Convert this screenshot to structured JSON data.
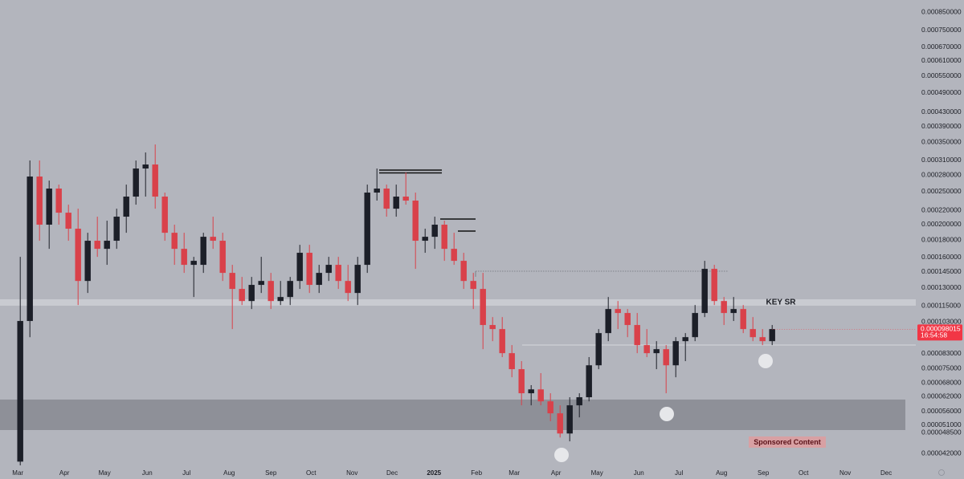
{
  "chart_data": {
    "type": "candlestick",
    "log_scale": true,
    "grid": false,
    "up_color": "#1c1f28",
    "down_color": "#d9414a",
    "x": [
      0,
      1,
      2,
      3,
      4,
      5,
      6,
      7,
      8,
      9,
      10,
      11,
      12,
      13,
      14,
      15,
      16,
      17,
      18,
      19,
      20,
      21,
      22,
      23,
      24,
      25,
      26,
      27,
      28,
      29,
      30,
      31,
      32,
      33,
      34,
      35,
      36,
      37,
      38,
      39,
      40,
      41,
      42,
      43,
      44,
      45,
      46,
      47,
      48,
      49,
      50,
      51,
      52,
      53,
      54,
      55,
      56,
      57,
      58,
      59,
      60,
      61,
      62,
      63,
      64,
      65,
      66,
      67,
      68,
      69,
      70,
      71,
      72,
      73,
      74,
      75,
      76,
      77,
      78
    ],
    "open": [
      3.98e-05,
      0.0001037,
      0.0002773,
      0.0001998,
      0.0002555,
      0.0002168,
      0.0001944,
      0.0001362,
      0.0001791,
      0.0001695,
      0.0001791,
      0.000211,
      0.0002419,
      0.0002929,
      0.000301,
      0.0002419,
      0.0001891,
      0.0001695,
      0.000152,
      0.000152,
      0.000184,
      0.0001791,
      0.0001439,
      0.000129,
      0.0001188,
      0.0001326,
      0.0001362,
      0.0001188,
      0.0001221,
      0.0001362,
      0.000165,
      0.0001326,
      0.0001439,
      0.000152,
      0.0001362,
      0.0001255,
      0.000152,
      0.0002486,
      0.0002555,
      0.0002228,
      0.0002419,
      0.0002354,
      0.0001791,
      0.000184,
      0.0001998,
      0.0001695,
      0.0001562,
      0.0001362,
      0.000129,
      0.0001009,
      9.815e-05,
      8.33e-05,
      7.47e-05,
      6.34e-05,
      6.51e-05,
      6e-05,
      5.53e-05,
      4.82e-05,
      5.84e-05,
      6.17e-05,
      7.67e-05,
      9.55e-05,
      0.0001125,
      0.0001095,
      0.0001009,
      8.8e-05,
      8.33e-05,
      8.56e-05,
      7.67e-05,
      9.04e-05,
      9.29e-05,
      0.0001095,
      0.0001479,
      0.0001188,
      0.0001095,
      0.0001125,
      9.815e-05,
      9.29e-05,
      9.04e-05
    ],
    "high": [
      0.0001605,
      0.0003093,
      0.0003093,
      0.0002698,
      0.0002625,
      0.000229,
      0.0002228,
      0.0001891,
      0.000211,
      0.0002053,
      0.0002228,
      0.0002625,
      0.0003093,
      0.0003267,
      0.000345,
      0.0002486,
      0.0001998,
      0.0001891,
      0.0001605,
      0.0001891,
      0.000211,
      0.0001891,
      0.000152,
      0.00014,
      0.00014,
      0.0001605,
      0.0001439,
      0.0001362,
      0.00014,
      0.0001742,
      0.0001742,
      0.000152,
      0.0001605,
      0.0001605,
      0.000152,
      0.0001605,
      0.0002625,
      0.0002929,
      0.0002625,
      0.0002625,
      0.000285,
      0.0002486,
      0.0001944,
      0.000211,
      0.0002053,
      0.0001891,
      0.000165,
      0.0001439,
      0.0001439,
      0.0001065,
      0.0001065,
      8.8e-05,
      7.89e-05,
      6.7e-05,
      7.27e-05,
      6.34e-05,
      5.84e-05,
      6.17e-05,
      6.34e-05,
      8.11e-05,
      9.815e-05,
      0.0001221,
      0.0001188,
      0.0001125,
      0.0001095,
      9.815e-05,
      9.04e-05,
      8.8e-05,
      9.29e-05,
      9.55e-05,
      0.0001156,
      0.0001562,
      0.000152,
      0.0001221,
      0.0001221,
      0.0001156,
      0.0001065,
      9.815e-05,
      0.0001009
    ],
    "low": [
      3.88e-05,
      9.29e-05,
      0.0001791,
      0.0001695,
      0.0001998,
      0.0001791,
      0.0001156,
      0.0001255,
      0.0001605,
      0.000152,
      0.0001695,
      0.0001891,
      0.000229,
      0.0002419,
      0.0002228,
      0.0001791,
      0.000152,
      0.0001439,
      0.0001221,
      0.0001439,
      0.0001695,
      0.0001362,
      9.815e-05,
      0.0001156,
      0.0001125,
      0.0001255,
      0.0001125,
      0.0001156,
      0.0001156,
      0.000129,
      0.0001255,
      0.0001255,
      0.0001362,
      0.000129,
      0.0001188,
      0.0001156,
      0.0001439,
      0.0002354,
      0.000211,
      0.000211,
      0.000229,
      0.0001479,
      0.000165,
      0.0001695,
      0.0001562,
      0.000152,
      0.000129,
      0.0001125,
      8.56e-05,
      9.04e-05,
      8.11e-05,
      7.07e-05,
      5.84e-05,
      5.84e-05,
      5.84e-05,
      5.24e-05,
      4.69e-05,
      4.57e-05,
      5.38e-05,
      6e-05,
      7.47e-05,
      9.04e-05,
      9.815e-05,
      9.29e-05,
      8.33e-05,
      8.11e-05,
      7.47e-05,
      6.34e-05,
      7.07e-05,
      7.89e-05,
      9.04e-05,
      0.0001065,
      0.0001156,
      0.0001009,
      0.0001037,
      9.55e-05,
      9.04e-05,
      8.8e-05,
      8.8e-05
    ],
    "close": [
      0.0001037,
      0.0002773,
      0.0001998,
      0.0002555,
      0.0002168,
      0.0001944,
      0.0001362,
      0.0001791,
      0.0001695,
      0.0001791,
      0.000211,
      0.0002419,
      0.0002929,
      0.000301,
      0.0002419,
      0.0001891,
      0.0001695,
      0.000152,
      0.0001562,
      0.000184,
      0.0001791,
      0.0001439,
      0.000129,
      0.0001188,
      0.0001326,
      0.0001362,
      0.0001188,
      0.0001221,
      0.0001362,
      0.000165,
      0.0001326,
      0.0001439,
      0.000152,
      0.0001362,
      0.0001255,
      0.000152,
      0.0002486,
      0.0002555,
      0.0002228,
      0.0002419,
      0.0002354,
      0.0001791,
      0.000184,
      0.0001998,
      0.0001695,
      0.0001562,
      0.0001362,
      0.000129,
      0.0001009,
      9.815e-05,
      8.33e-05,
      7.47e-05,
      6.34e-05,
      6.51e-05,
      6e-05,
      5.53e-05,
      4.82e-05,
      5.84e-05,
      6.17e-05,
      7.67e-05,
      9.55e-05,
      0.0001125,
      0.0001095,
      0.0001009,
      8.8e-05,
      8.33e-05,
      8.56e-05,
      7.67e-05,
      9.04e-05,
      9.29e-05,
      0.0001095,
      0.0001479,
      0.0001188,
      0.0001095,
      0.0001125,
      9.815e-05,
      9.29e-05,
      9.04e-05,
      9.815e-05
    ],
    "xlim": [
      -2.1,
      91.9
    ],
    "xticks": [
      {
        "value": -0.25,
        "label": "Mar"
      },
      {
        "value": 4.58,
        "label": "Apr"
      },
      {
        "value": 8.75,
        "label": "May"
      },
      {
        "value": 13.17,
        "label": "Jun"
      },
      {
        "value": 17.25,
        "label": "Jul"
      },
      {
        "value": 21.67,
        "label": "Aug"
      },
      {
        "value": 26,
        "label": "Sep"
      },
      {
        "value": 30.17,
        "label": "Oct"
      },
      {
        "value": 34.42,
        "label": "Nov"
      },
      {
        "value": 38.58,
        "label": "Dec"
      },
      {
        "value": 42.92,
        "label": "2025"
      },
      {
        "value": 47.33,
        "label": "Feb"
      },
      {
        "value": 51.25,
        "label": "Mar"
      },
      {
        "value": 55.58,
        "label": "Apr"
      },
      {
        "value": 59.83,
        "label": "May"
      },
      {
        "value": 64.17,
        "label": "Jun"
      },
      {
        "value": 68.33,
        "label": "Jul"
      },
      {
        "value": 72.75,
        "label": "Aug"
      },
      {
        "value": 77.08,
        "label": "Sep"
      },
      {
        "value": 81.25,
        "label": "Oct"
      },
      {
        "value": 85.58,
        "label": "Nov"
      },
      {
        "value": 89.83,
        "label": "Dec"
      }
    ],
    "ylim": [
      3.88e-05,
      0.0009226
    ],
    "yticks": [
      {
        "value": 0.00085,
        "label": "0.000850000"
      },
      {
        "value": 0.00075,
        "label": "0.000750000"
      },
      {
        "value": 0.00067,
        "label": "0.000670000"
      },
      {
        "value": 0.00061,
        "label": "0.000610000"
      },
      {
        "value": 0.00055,
        "label": "0.000550000"
      },
      {
        "value": 0.00049,
        "label": "0.000490000"
      },
      {
        "value": 0.00043,
        "label": "0.000430000"
      },
      {
        "value": 0.00039,
        "label": "0.000390000"
      },
      {
        "value": 0.00035,
        "label": "0.000350000"
      },
      {
        "value": 0.00031,
        "label": "0.000310000"
      },
      {
        "value": 0.00028,
        "label": "0.000280000"
      },
      {
        "value": 0.00025,
        "label": "0.000250000"
      },
      {
        "value": 0.00022,
        "label": "0.000220000"
      },
      {
        "value": 0.0002,
        "label": "0.000200000"
      },
      {
        "value": 0.00018,
        "label": "0.000180000"
      },
      {
        "value": 0.00016,
        "label": "0.000160000"
      },
      {
        "value": 0.000145,
        "label": "0.000145000"
      },
      {
        "value": 0.00013,
        "label": "0.000130000"
      },
      {
        "value": 0.000115,
        "label": "0.000115000"
      },
      {
        "value": 0.000103,
        "label": "0.000103000"
      },
      {
        "value": 8.3e-05,
        "label": "0.000083000"
      },
      {
        "value": 7.5e-05,
        "label": "0.000075000"
      },
      {
        "value": 6.8e-05,
        "label": "0.000068000"
      },
      {
        "value": 6.2e-05,
        "label": "0.000062000"
      },
      {
        "value": 5.6e-05,
        "label": "0.000056000"
      },
      {
        "value": 5.1e-05,
        "label": "0.000051000"
      },
      {
        "value": 4.85e-05,
        "label": "0.000048500"
      },
      {
        "value": 4.2e-05,
        "label": "0.000042000"
      }
    ],
    "last_price": 9.8015e-05,
    "countdown": "16:54:58",
    "last_price_color": "#f23645",
    "annotations": {
      "key_sr": "KEY SR",
      "sponsored": "Sponsored Content"
    }
  }
}
